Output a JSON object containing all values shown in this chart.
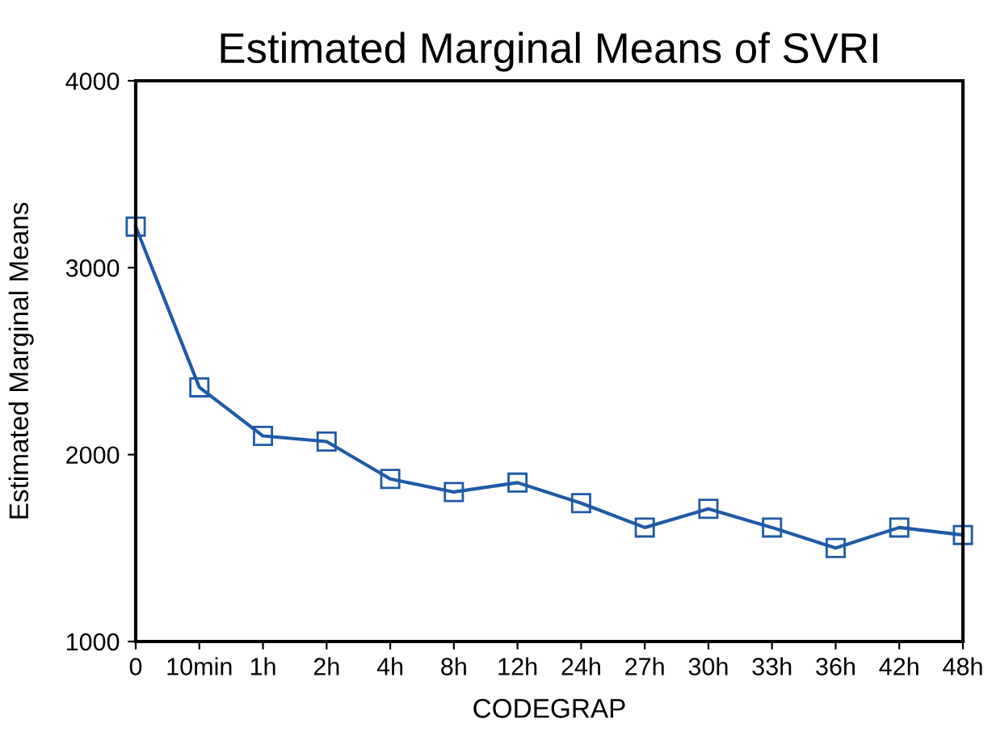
{
  "chart_data": {
    "type": "line",
    "title": "Estimated Marginal Means of SVRI",
    "xlabel": "CODEGRAP",
    "ylabel": "Estimated Marginal Means",
    "categories": [
      "0",
      "10min",
      "1h",
      "2h",
      "4h",
      "8h",
      "12h",
      "24h",
      "27h",
      "30h",
      "33h",
      "36h",
      "42h",
      "48h"
    ],
    "series": [
      {
        "color": "#1f5aa6",
        "values": [
          3220,
          2360,
          2100,
          2070,
          1870,
          1800,
          1850,
          1740,
          1610,
          1710,
          1610,
          1500,
          1610,
          1570
        ]
      }
    ],
    "ylim": [
      1000,
      4000
    ],
    "yticks": [
      1000,
      2000,
      3000,
      4000
    ],
    "marker": "square",
    "line_style": "solid",
    "grid": false,
    "legend": false
  }
}
